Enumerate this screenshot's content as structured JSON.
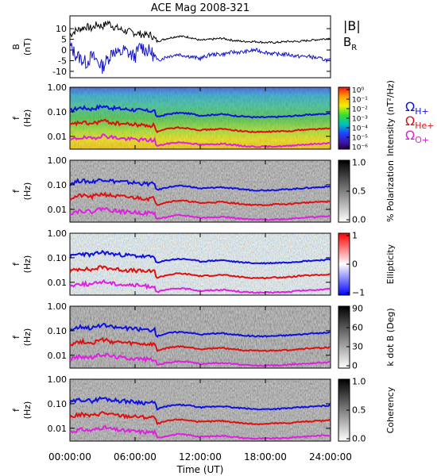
{
  "chart_data": {
    "type": "spectrogram",
    "title": "ACE Mag 2008-321",
    "xlabel": "Time (UT)",
    "x_ticks": [
      "00:00:00",
      "06:00:00",
      "12:00:00",
      "18:00:00",
      "24:00:00"
    ],
    "xlim_hours": [
      0,
      24
    ],
    "freq_ticks": [
      "1.00",
      "0.10",
      "0.01"
    ],
    "freq_range_hz": [
      0.003,
      1.0
    ],
    "gyro_legend": [
      {
        "label": "Ω",
        "sub": "H+",
        "color": "#1010e0"
      },
      {
        "label": "Ω",
        "sub": "He+",
        "color": "#e01010"
      },
      {
        "label": "Ω",
        "sub": "O+",
        "color": "#e020e0"
      }
    ],
    "field_panel": {
      "ylabel": "B",
      "yunit": "(nT)",
      "y_ticks": [
        10,
        5,
        0,
        -5,
        -10
      ],
      "ylim": [
        -13,
        16
      ],
      "legend": [
        {
          "name": "|B|",
          "color": "#000000"
        },
        {
          "name": "B",
          "sub": "R",
          "color": "#1414c8"
        }
      ],
      "B_total": {
        "t": [
          0,
          0.5,
          1,
          1.5,
          2,
          2.5,
          3,
          3.5,
          4,
          4.5,
          5,
          5.5,
          6,
          6.5,
          7,
          7.5,
          8,
          9,
          10,
          11,
          12,
          13,
          14,
          15,
          16,
          17,
          18,
          19,
          20,
          21,
          22,
          23,
          24
        ],
        "v": [
          7,
          9,
          10,
          11,
          10,
          12,
          11,
          13,
          11,
          10,
          9,
          8.5,
          8,
          7.5,
          7,
          7,
          4,
          5.5,
          6.5,
          6,
          4.5,
          5,
          5.5,
          4.5,
          4,
          4,
          3.5,
          3.5,
          4,
          4,
          4.5,
          5,
          5.5
        ]
      },
      "B_R": {
        "t": [
          0,
          0.5,
          1,
          1.5,
          2,
          2.5,
          3,
          3.5,
          4,
          4.5,
          5,
          5.5,
          6,
          6.5,
          7,
          7.5,
          8,
          9,
          10,
          11,
          12,
          13,
          14,
          15,
          16,
          17,
          18,
          19,
          20,
          21,
          22,
          23,
          24
        ],
        "v": [
          2,
          -2,
          -4,
          -6,
          -3,
          -5,
          -8,
          -4,
          0,
          -2,
          0,
          -2,
          -3,
          2,
          0,
          -1,
          -5,
          -3,
          -2,
          -3,
          -4,
          -2,
          -2,
          -1,
          -1,
          0,
          -1,
          -2,
          -2,
          -3,
          -3,
          -4,
          -5
        ]
      }
    },
    "spectral_panels": [
      {
        "ylabel": "f",
        "yunit": "(Hz)",
        "colorbar_label": "Intensity (nT²/Hz)",
        "colorbar_ticks": [
          "10⁰",
          "10⁻¹",
          "10⁻²",
          "10⁻³",
          "10⁻⁴",
          "10⁻⁵",
          "10⁻⁶"
        ],
        "colormap": "rainbow"
      },
      {
        "ylabel": "f",
        "yunit": "(Hz)",
        "colorbar_label": "% Polarization",
        "colorbar_ticks": [
          "1.0",
          "0.5",
          "0.0"
        ],
        "colormap": "gray"
      },
      {
        "ylabel": "f",
        "yunit": "(Hz)",
        "colorbar_label": "Ellipticity",
        "colorbar_ticks": [
          "1",
          "0",
          "−1"
        ],
        "colormap": "bwr"
      },
      {
        "ylabel": "f",
        "yunit": "(Hz)",
        "colorbar_label": "k dot B (Deg)",
        "colorbar_ticks": [
          "90",
          "60",
          "30",
          "0"
        ],
        "colormap": "gray"
      },
      {
        "ylabel": "f",
        "yunit": "(Hz)",
        "colorbar_label": "Coherency",
        "colorbar_ticks": [
          "1.0",
          "0.5",
          "0.0"
        ],
        "colormap": "gray"
      }
    ],
    "gyro_lines": {
      "t": [
        0,
        1,
        2,
        3,
        4,
        5,
        6,
        7,
        7.8,
        8,
        9,
        10,
        11,
        12,
        13,
        14,
        15,
        16,
        17,
        18,
        19,
        20,
        21,
        22,
        23,
        24
      ],
      "H+": [
        0.11,
        0.15,
        0.13,
        0.17,
        0.14,
        0.13,
        0.12,
        0.11,
        0.11,
        0.06,
        0.08,
        0.09,
        0.085,
        0.07,
        0.075,
        0.08,
        0.07,
        0.065,
        0.06,
        0.06,
        0.062,
        0.065,
        0.07,
        0.075,
        0.08,
        0.085
      ],
      "He+": [
        0.028,
        0.037,
        0.032,
        0.043,
        0.035,
        0.032,
        0.03,
        0.028,
        0.028,
        0.015,
        0.02,
        0.023,
        0.021,
        0.018,
        0.019,
        0.02,
        0.018,
        0.016,
        0.015,
        0.015,
        0.016,
        0.016,
        0.018,
        0.019,
        0.02,
        0.021
      ],
      "O+": [
        0.007,
        0.009,
        0.008,
        0.011,
        0.009,
        0.008,
        0.0075,
        0.007,
        0.007,
        0.004,
        0.005,
        0.0057,
        0.0053,
        0.0045,
        0.0047,
        0.005,
        0.0045,
        0.004,
        0.0038,
        0.0038,
        0.0039,
        0.004,
        0.0045,
        0.0047,
        0.005,
        0.0053
      ]
    }
  }
}
